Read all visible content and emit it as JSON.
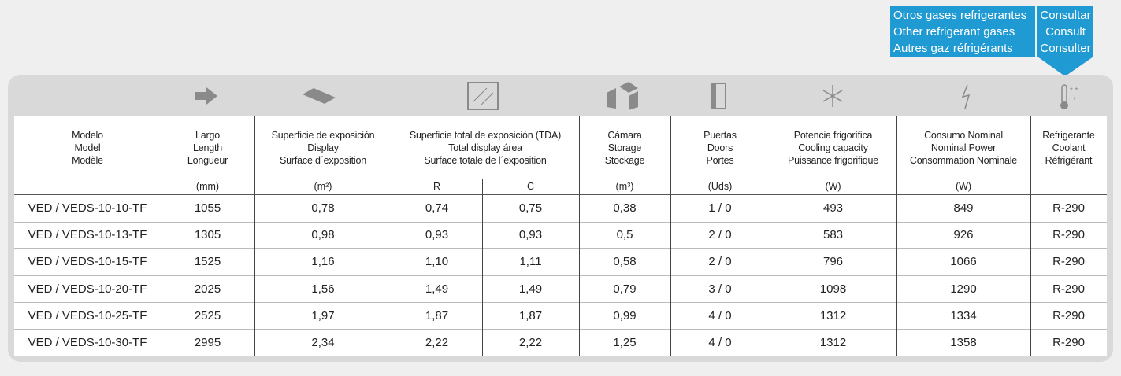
{
  "note": {
    "other_gases": [
      "Otros gases refrigerantes",
      "Other refrigerant gases",
      "Autres gaz réfrigérants"
    ],
    "consult": [
      "Consultar",
      "Consult",
      "Consulter"
    ]
  },
  "table": {
    "header": [
      [
        "Modelo",
        "Model",
        "Modèle"
      ],
      [
        "Largo",
        "Length",
        "Longueur"
      ],
      [
        "Superficie de exposición",
        "Display",
        "Surface d´exposition"
      ],
      [
        "Superficie total de exposición (TDA)",
        "Total display área",
        "Surface totale de l´exposition"
      ],
      [
        "Cámara",
        "Storage",
        "Stockage"
      ],
      [
        "Puertas",
        "Doors",
        "Portes"
      ],
      [
        "Potencia frigorífica",
        "Cooling capacity",
        "Puissance frigorifique"
      ],
      [
        "Consumo Nominal",
        "Nominal Power",
        "Consommation Nominale"
      ],
      [
        "Refrigerante",
        "Coolant",
        "Réfrigérant"
      ]
    ],
    "units": [
      "(mm)",
      "(m²)",
      "R",
      "C",
      "(m³)",
      "(Uds)",
      "(W)",
      "(W)"
    ],
    "rows": [
      [
        "VED / VEDS-10-10-TF",
        "1055",
        "0,78",
        "0,74",
        "0,75",
        "0,38",
        "1 / 0",
        "493",
        "849",
        "R-290"
      ],
      [
        "VED / VEDS-10-13-TF",
        "1305",
        "0,98",
        "0,93",
        "0,93",
        "0,5",
        "2 / 0",
        "583",
        "926",
        "R-290"
      ],
      [
        "VED / VEDS-10-15-TF",
        "1525",
        "1,16",
        "1,10",
        "1,11",
        "0,58",
        "2 / 0",
        "796",
        "1066",
        "R-290"
      ],
      [
        "VED / VEDS-10-20-TF",
        "2025",
        "1,56",
        "1,49",
        "1,49",
        "0,79",
        "3 / 0",
        "1098",
        "1290",
        "R-290"
      ],
      [
        "VED / VEDS-10-25-TF",
        "2525",
        "1,97",
        "1,87",
        "1,87",
        "0,99",
        "4 / 0",
        "1312",
        "1334",
        "R-290"
      ],
      [
        "VED / VEDS-10-30-TF",
        "2995",
        "2,34",
        "2,22",
        "2,22",
        "1,25",
        "4 / 0",
        "1312",
        "1358",
        "R-290"
      ]
    ]
  }
}
